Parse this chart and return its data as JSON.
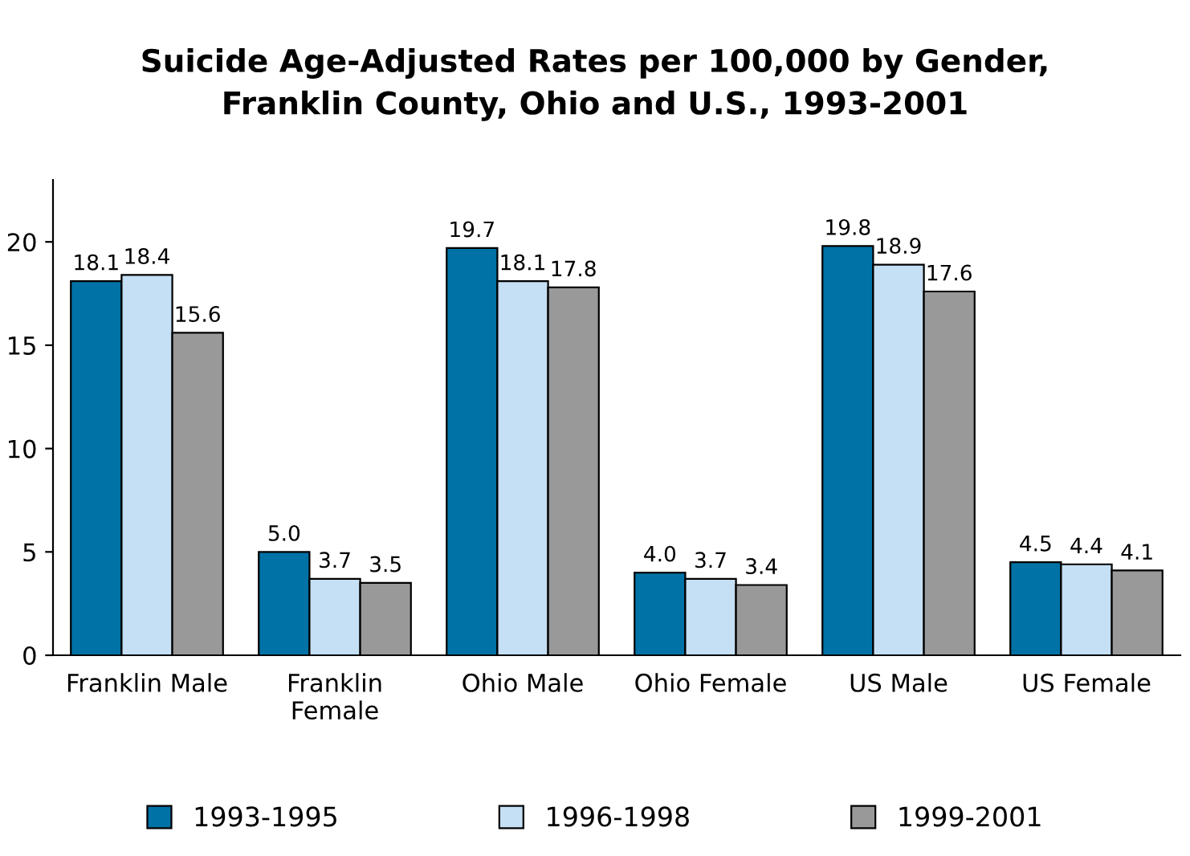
{
  "chart_data": {
    "type": "bar",
    "title": "Suicide Age-Adjusted Rates per 100,000 by Gender,\nFranklin County, Ohio and U.S., 1993-2001",
    "categories": [
      "Franklin Male",
      "Franklin\nFemale",
      "Ohio Male",
      "Ohio Female",
      "US Male",
      "US Female"
    ],
    "series": [
      {
        "name": "1993-1995",
        "color": "#0072a6",
        "values": [
          18.1,
          5.0,
          19.7,
          4.0,
          19.8,
          4.5
        ],
        "value_labels": [
          "18.1",
          "5.0",
          "19.7",
          "4.0",
          "19.8",
          "4.5"
        ]
      },
      {
        "name": "1996-1998",
        "color": "#c5dff4",
        "values": [
          18.4,
          3.7,
          18.1,
          3.7,
          18.9,
          4.4
        ],
        "value_labels": [
          "18.4",
          "3.7",
          "18.1",
          "3.7",
          "18.9",
          "4.4"
        ]
      },
      {
        "name": "1999-2001",
        "color": "#999999",
        "values": [
          15.6,
          3.5,
          17.8,
          3.4,
          17.6,
          4.1
        ],
        "value_labels": [
          "15.6",
          "3.5",
          "17.8",
          "3.4",
          "17.6",
          "4.1"
        ]
      }
    ],
    "ylim": [
      0,
      23
    ],
    "yticks": [
      0,
      5,
      10,
      15,
      20
    ],
    "grid": false,
    "legend": "bottom"
  }
}
